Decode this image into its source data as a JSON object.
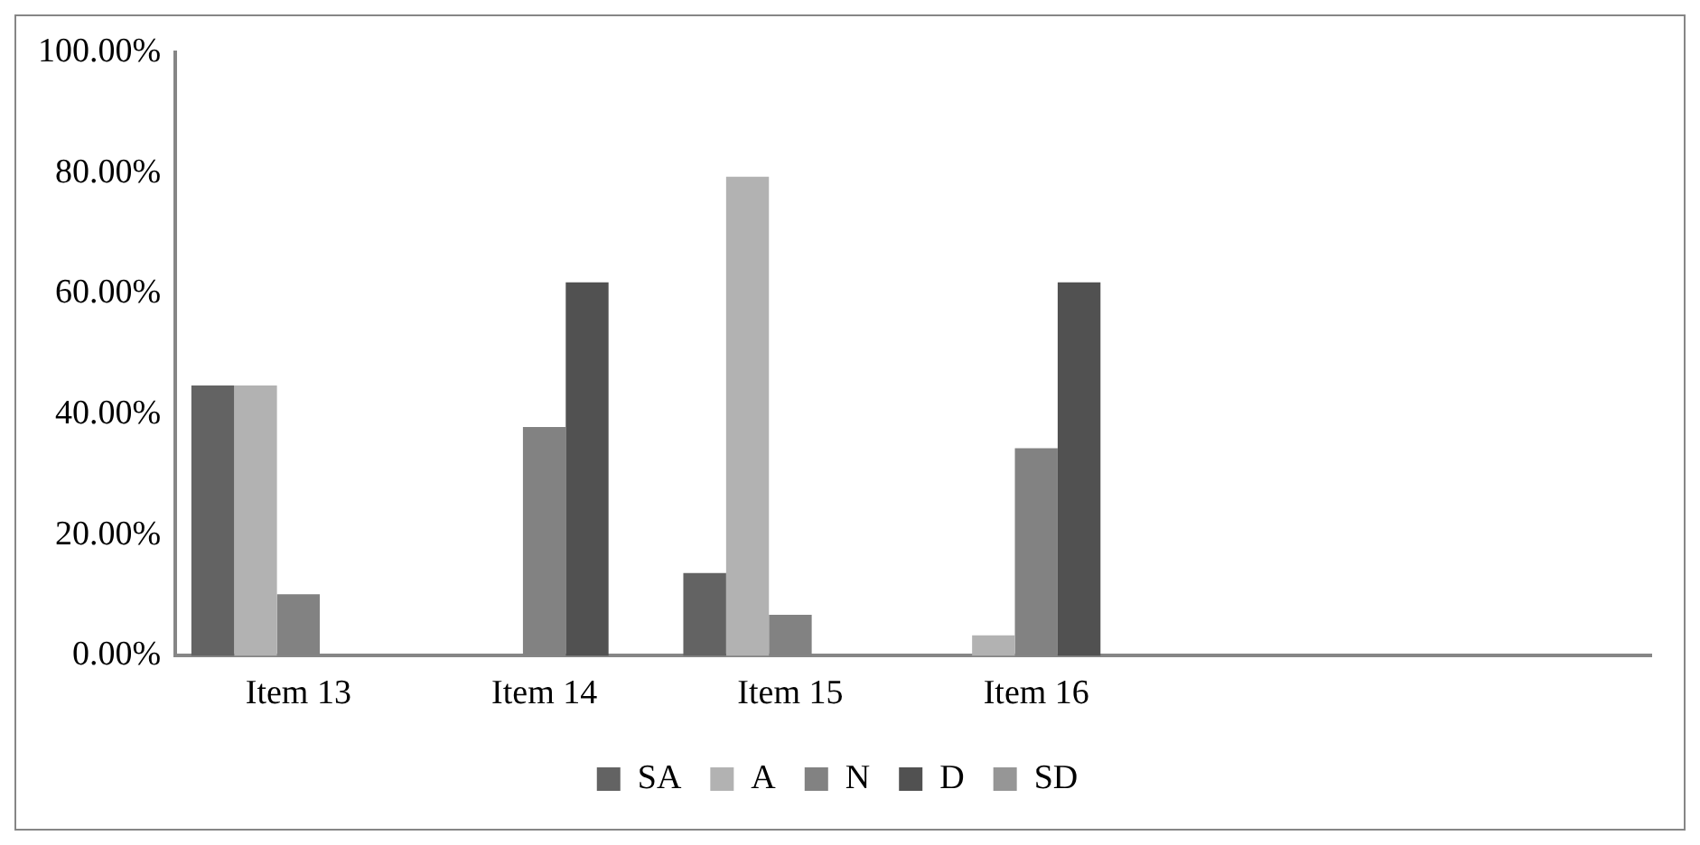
{
  "chart_data": {
    "type": "bar",
    "categories": [
      "Item 13",
      "Item 14",
      "Item 15",
      "Item 16",
      null,
      null
    ],
    "series": [
      {
        "name": "SA",
        "color": "#636363",
        "values": [
          44.8,
          0,
          13.7,
          0,
          null,
          null
        ]
      },
      {
        "name": "A",
        "color": "#b2b2b2",
        "values": [
          44.8,
          0,
          79.4,
          3.4,
          null,
          null
        ]
      },
      {
        "name": "N",
        "color": "#828282",
        "values": [
          10.2,
          37.9,
          6.8,
          34.4,
          null,
          null
        ]
      },
      {
        "name": "D",
        "color": "#515151",
        "values": [
          0,
          61.9,
          0,
          61.9,
          null,
          null
        ]
      },
      {
        "name": "SD",
        "color": "#969696",
        "values": [
          0,
          0,
          0,
          0,
          null,
          null
        ]
      }
    ],
    "ylim": [
      0,
      100
    ],
    "yticks": [
      {
        "value": 0,
        "label": "0.00%"
      },
      {
        "value": 20,
        "label": "20.00%"
      },
      {
        "value": 40,
        "label": "40.00%"
      },
      {
        "value": 60,
        "label": "60.00%"
      },
      {
        "value": 80,
        "label": "80.00%"
      },
      {
        "value": 100,
        "label": "100.00%"
      }
    ],
    "grid": false,
    "legend": "bottom"
  }
}
